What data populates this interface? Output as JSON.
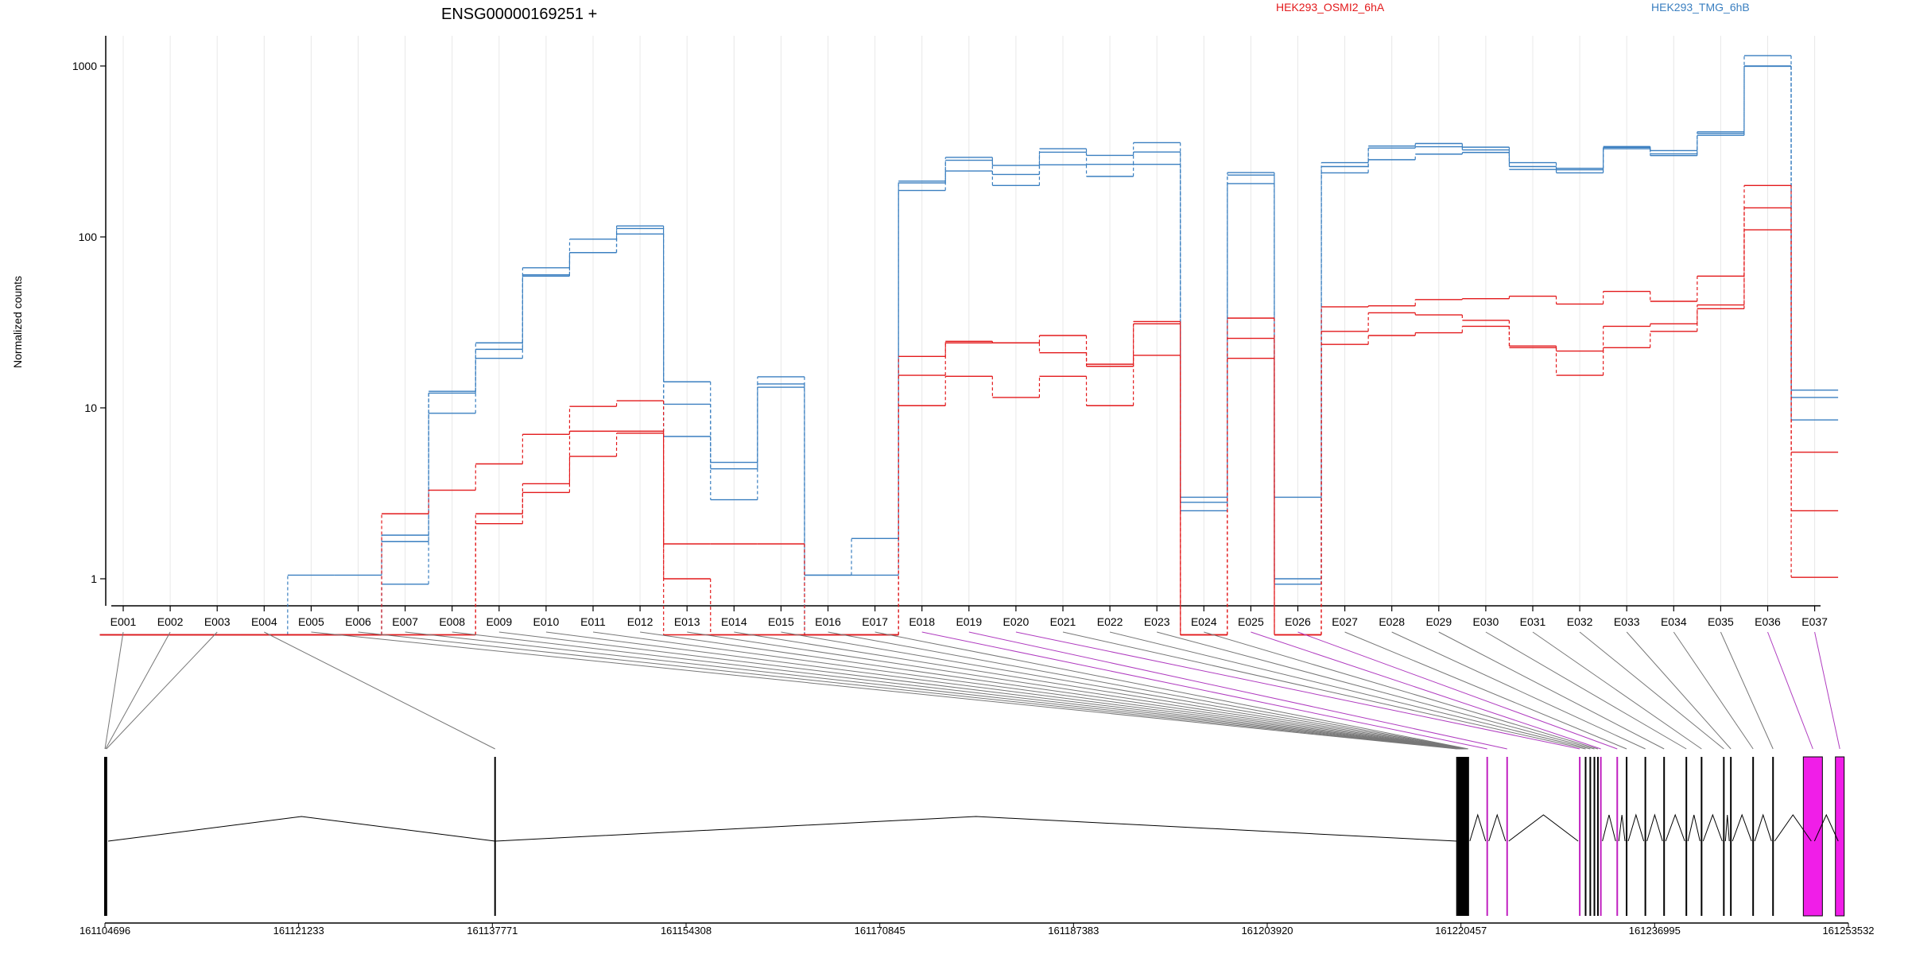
{
  "chart_data": {
    "type": "line",
    "title": "ENSG00000169251 +",
    "ylabel": "Normalized counts",
    "y_scale": "log",
    "y_ticks": [
      "1000",
      "100",
      "10",
      "1"
    ],
    "legend": [
      {
        "name": "HEK293_OSMI2_6hA",
        "color": "#e31a1c"
      },
      {
        "name": "HEK293_TMG_6hB",
        "color": "#3a7fc0"
      }
    ],
    "grid": "vertical",
    "exons": [
      "E001",
      "E002",
      "E003",
      "E004",
      "E005",
      "E006",
      "E007",
      "E008",
      "E009",
      "E010",
      "E011",
      "E012",
      "E013",
      "E014",
      "E015",
      "E016",
      "E017",
      "E018",
      "E019",
      "E020",
      "E021",
      "E022",
      "E023",
      "E024",
      "E025",
      "E026",
      "E027",
      "E028",
      "E029",
      "E030",
      "E031",
      "E032",
      "E033",
      "E034",
      "E035",
      "E036",
      "E037"
    ],
    "highlighted_exons": [
      "E018",
      "E019",
      "E020",
      "E025",
      "E026",
      "E036",
      "E037"
    ],
    "series": [
      {
        "group": "HEK293_TMG_6hB",
        "color": "#3a7fc0",
        "values": [
          0.47,
          0.47,
          0.47,
          0.47,
          1.05,
          1.05,
          1.8,
          12.5,
          24,
          66,
          97,
          116,
          14.2,
          4.8,
          15.2,
          1.05,
          1.05,
          212,
          292,
          262,
          328,
          300,
          356,
          3.0,
          238,
          3.0,
          272,
          340,
          352,
          335,
          272,
          252,
          338,
          320,
          412,
          1150,
          12.7
        ]
      },
      {
        "group": "HEK293_TMG_6hB",
        "color": "#3a7fc0",
        "values": [
          0.47,
          0.47,
          0.47,
          0.47,
          0.47,
          0.47,
          1.65,
          12.2,
          22,
          59,
          81,
          112,
          10.5,
          4.4,
          13.8,
          1.05,
          1.72,
          207,
          281,
          232,
          313,
          266,
          314,
          2.8,
          230,
          1.0,
          258,
          331,
          337,
          323,
          258,
          247,
          328,
          299,
          403,
          1000,
          11.5
        ]
      },
      {
        "group": "HEK293_TMG_6hB",
        "color": "#3a7fc0",
        "values": [
          0.47,
          0.47,
          0.47,
          0.47,
          0.47,
          0.47,
          0.93,
          9.3,
          19.5,
          60,
          81,
          104,
          6.8,
          2.9,
          13.2,
          0.47,
          0.47,
          187,
          243,
          200,
          264,
          226,
          266,
          2.5,
          205,
          0.93,
          237,
          283,
          305,
          312,
          248,
          237,
          334,
          306,
          393,
          995,
          8.5
        ]
      },
      {
        "group": "HEK293_OSMI2_6hA",
        "color": "#e31a1c",
        "values": [
          0.47,
          0.47,
          0.47,
          0.47,
          0.47,
          0.47,
          2.4,
          3.3,
          4.7,
          7.0,
          10.2,
          11.0,
          1.6,
          1.6,
          1.6,
          0.47,
          0.47,
          20,
          24.5,
          24,
          26.5,
          17.5,
          32,
          0.47,
          33.5,
          0.47,
          39,
          39.5,
          43,
          43.5,
          45,
          40.5,
          48,
          42,
          59,
          200,
          5.5
        ]
      },
      {
        "group": "HEK293_OSMI2_6hA",
        "color": "#e31a1c",
        "values": [
          0.47,
          0.47,
          0.47,
          0.47,
          0.47,
          0.47,
          0.47,
          0.47,
          2.4,
          3.6,
          7.3,
          7.3,
          1.0,
          0.47,
          0.47,
          0.47,
          0.47,
          15.5,
          24,
          24,
          21,
          18,
          31,
          0.47,
          25.5,
          0.47,
          28,
          36,
          35,
          32.5,
          23,
          21.5,
          30,
          31,
          40,
          148,
          2.5
        ]
      },
      {
        "group": "HEK293_OSMI2_6hA",
        "color": "#e31a1c",
        "values": [
          0.47,
          0.47,
          0.47,
          0.47,
          0.47,
          0.47,
          0.47,
          0.47,
          2.1,
          3.2,
          5.2,
          7.1,
          0.47,
          0.47,
          0.47,
          0.47,
          0.47,
          10.3,
          15.3,
          11.5,
          15.3,
          10.3,
          20.3,
          0.47,
          19.5,
          0.47,
          23.5,
          26.5,
          27.5,
          30,
          22.5,
          15.5,
          22.5,
          28,
          38,
          110,
          1.02
        ]
      }
    ],
    "genomic_axis": {
      "range": [
        161104696,
        161253532
      ],
      "tick_labels": [
        "161104696",
        "161121233",
        "161137771",
        "161154308",
        "161170845",
        "161187383",
        "161203920",
        "161220457",
        "161236995",
        "161253532"
      ]
    }
  }
}
